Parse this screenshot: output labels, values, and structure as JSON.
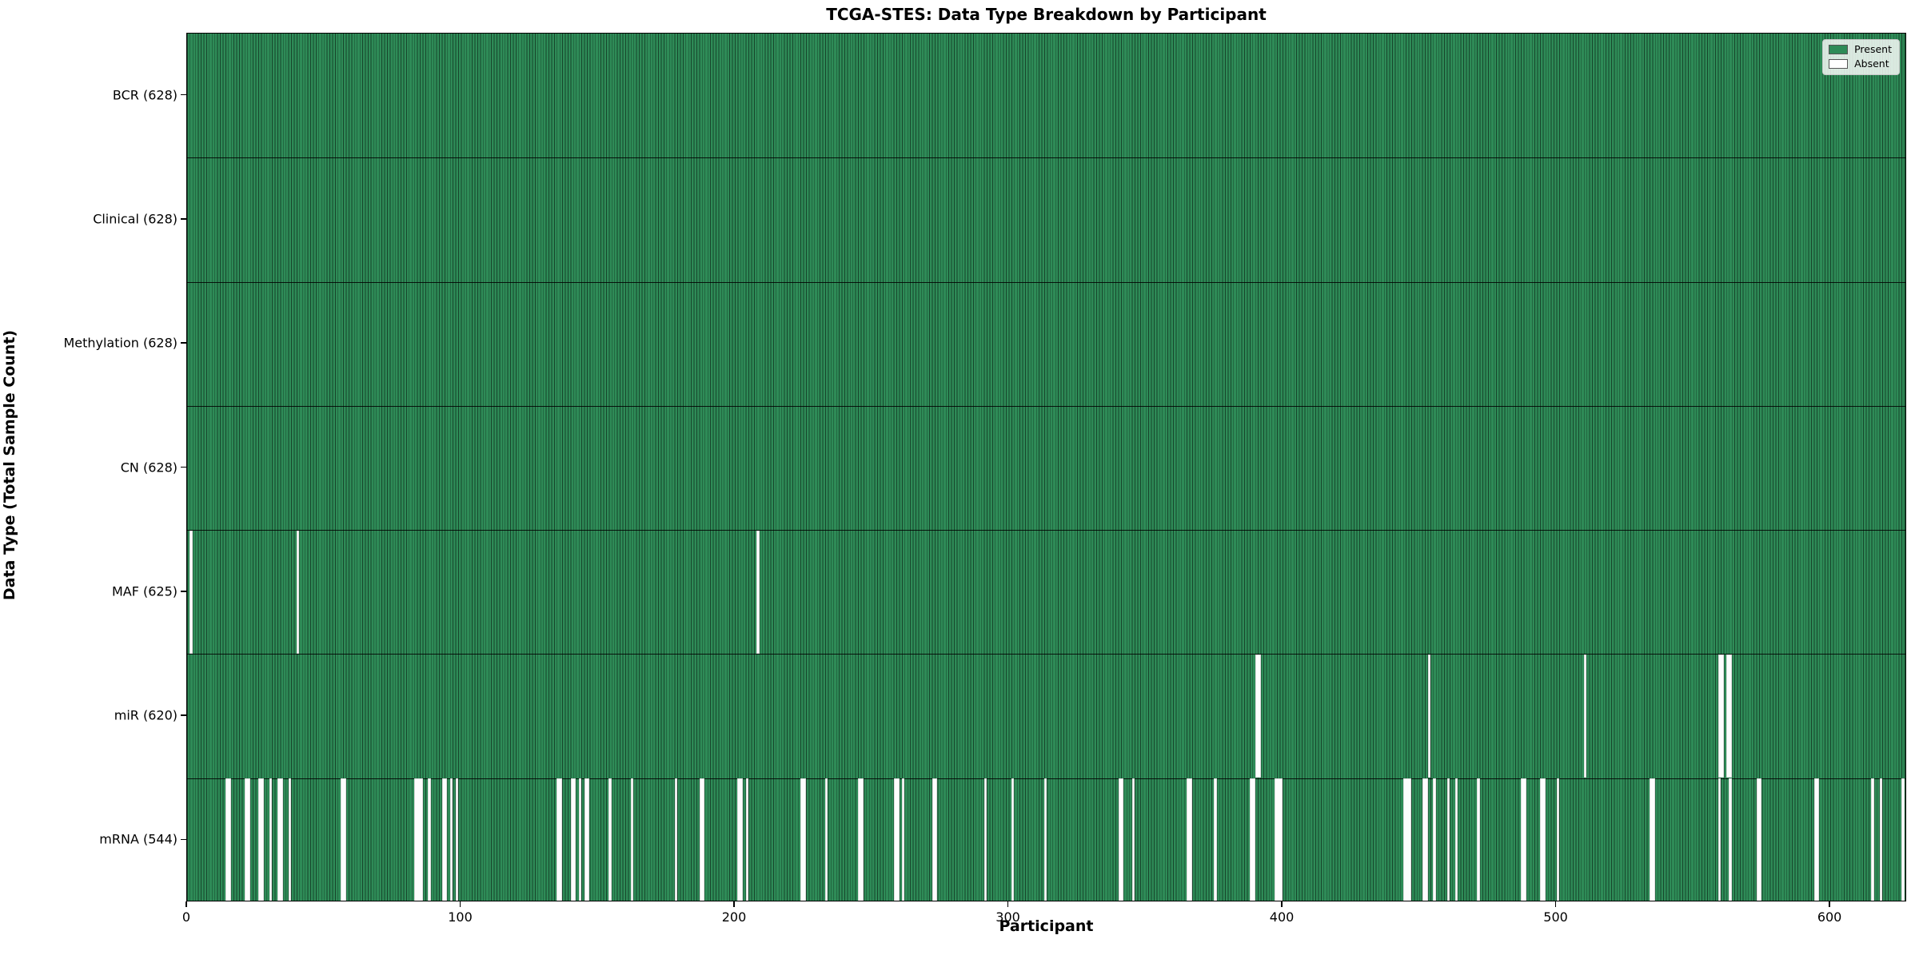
{
  "title": "TCGA-STES: Data Type Breakdown by Participant",
  "x_axis": {
    "label": "Participant",
    "ticks": [
      0,
      100,
      200,
      300,
      400,
      500,
      600
    ],
    "min": 0,
    "max": 628
  },
  "y_axis": {
    "label": "Data Type (Total Sample Count)"
  },
  "legend": {
    "present_label": "Present",
    "absent_label": "Absent",
    "position": "upper right"
  },
  "colors": {
    "present": "#2E8B57",
    "absent": "#fdfdfd",
    "bar_edge": "rgba(0,0,0,0.5)",
    "background": "#ffffff"
  },
  "chart_data": {
    "type": "heatmap",
    "title": "TCGA-STES: Data Type Breakdown by Participant",
    "xlabel": "Participant",
    "ylabel": "Data Type (Total Sample Count)",
    "x_range": [
      0,
      628
    ],
    "total_participants": 628,
    "grid": false,
    "legend_entries": [
      "Present",
      "Absent"
    ],
    "rows": [
      {
        "label": "BCR (628)",
        "name": "BCR",
        "present_count": 628,
        "absent_participants": []
      },
      {
        "label": "Clinical (628)",
        "name": "Clinical",
        "present_count": 628,
        "absent_participants": []
      },
      {
        "label": "Methylation (628)",
        "name": "Methylation",
        "present_count": 628,
        "absent_participants": []
      },
      {
        "label": "CN (628)",
        "name": "CN",
        "present_count": 628,
        "absent_participants": []
      },
      {
        "label": "MAF (625)",
        "name": "MAF",
        "present_count": 625,
        "absent_participants": [
          1,
          40,
          208
        ]
      },
      {
        "label": "miR (620)",
        "name": "miR",
        "present_count": 620,
        "absent_participants": [
          390,
          391,
          453,
          510,
          559,
          560,
          562,
          563
        ]
      },
      {
        "label": "mRNA (544)",
        "name": "mRNA",
        "present_count": 544,
        "absent_participants": [
          14,
          15,
          21,
          22,
          26,
          27,
          30,
          33,
          34,
          37,
          56,
          57,
          83,
          84,
          85,
          88,
          93,
          94,
          96,
          98,
          135,
          136,
          140,
          141,
          143,
          145,
          146,
          154,
          162,
          178,
          187,
          188,
          201,
          202,
          204,
          224,
          225,
          233,
          245,
          246,
          258,
          259,
          261,
          272,
          273,
          291,
          301,
          313,
          340,
          341,
          345,
          365,
          366,
          375,
          388,
          389,
          397,
          398,
          399,
          444,
          445,
          446,
          451,
          452,
          455,
          460,
          463,
          471,
          487,
          488,
          494,
          495,
          500,
          534,
          535,
          559,
          563,
          573,
          574,
          594,
          595,
          615,
          618,
          626
        ]
      }
    ]
  }
}
